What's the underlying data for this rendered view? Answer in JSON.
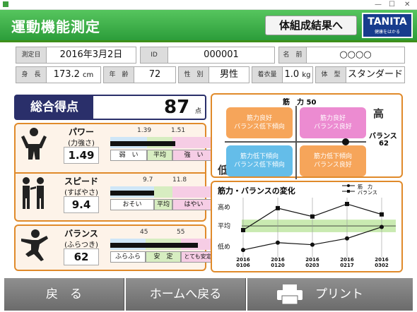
{
  "window": {
    "minimize": "—",
    "maximize": "☐",
    "close": "✕"
  },
  "header": {
    "title": "運動機能測定",
    "body_button": "体組成結果へ",
    "logo_brand": "TANITA",
    "logo_tag": "健康をはかる"
  },
  "info": {
    "date_label": "測定日",
    "date": "2016年3月2日",
    "id_label": "ID",
    "id": "000001",
    "name_label": "名　前",
    "name": "○○○○",
    "height_label": "身　長",
    "height": "173.2",
    "height_unit": "cm",
    "age_label": "年　齢",
    "age": "72",
    "sex_label": "性　別",
    "sex": "男性",
    "clothes_label": "着衣量",
    "clothes": "1.0",
    "clothes_unit": "kg",
    "type_label": "体　型",
    "type": "スタンダード"
  },
  "score": {
    "label": "総合得点",
    "value": "87",
    "unit": "点"
  },
  "metrics": [
    {
      "name": "パワー",
      "sub": "(力強さ)",
      "value": "1.49",
      "tick1": "1.39",
      "tick2": "1.51",
      "cats": [
        "弱　い",
        "平均",
        "強　い"
      ],
      "level": 0.62
    },
    {
      "name": "スピード",
      "sub": "(すばやさ)",
      "value": "9.4",
      "tick1": "9.7",
      "tick2": "11.8",
      "cats": [
        "おそい",
        "平均",
        "はやい"
      ],
      "level": 0.42
    },
    {
      "name": "バランス",
      "sub": "(ふらつき)",
      "value": "62",
      "tick1": "45",
      "tick2": "55",
      "cats": [
        "ふらふら",
        "安　定",
        "とても安定"
      ],
      "level": 0.84
    }
  ],
  "matrix": {
    "top_label": "筋　力 50",
    "high": "高",
    "low": "低",
    "right_label": "バランス",
    "right_value": "62",
    "quadrants": [
      "筋力良好\nバランス低下傾向",
      "筋力良好\nバランス良好",
      "筋力低下傾向\nバランス低下傾向",
      "筋力低下傾向\nバランス良好"
    ],
    "colors": {
      "top_left": "#f6a55a",
      "top_right": "#ec8bd1",
      "bottom_left": "#64bde9",
      "bottom_right": "#f6a55a"
    }
  },
  "chart_data": {
    "type": "line",
    "title": "筋力・バランスの変化",
    "categories": [
      "2016\n0106",
      "2016\n0120",
      "2016\n0203",
      "2016\n0217",
      "2016\n0302"
    ],
    "ylabels": [
      "高め",
      "平均",
      "低め"
    ],
    "series": [
      {
        "name": "筋　力",
        "values": [
          0.08,
          0.22,
          0.18,
          0.3,
          0.52
        ],
        "marker": "circle"
      },
      {
        "name": "バランス",
        "values": [
          0.46,
          0.88,
          0.72,
          0.96,
          0.76
        ],
        "marker": "square"
      }
    ],
    "ylim": [
      0,
      1
    ],
    "average_band": [
      0.42,
      0.66
    ]
  },
  "footer": {
    "back": "戻　る",
    "home": "ホームへ戻る",
    "print": "プリント"
  }
}
